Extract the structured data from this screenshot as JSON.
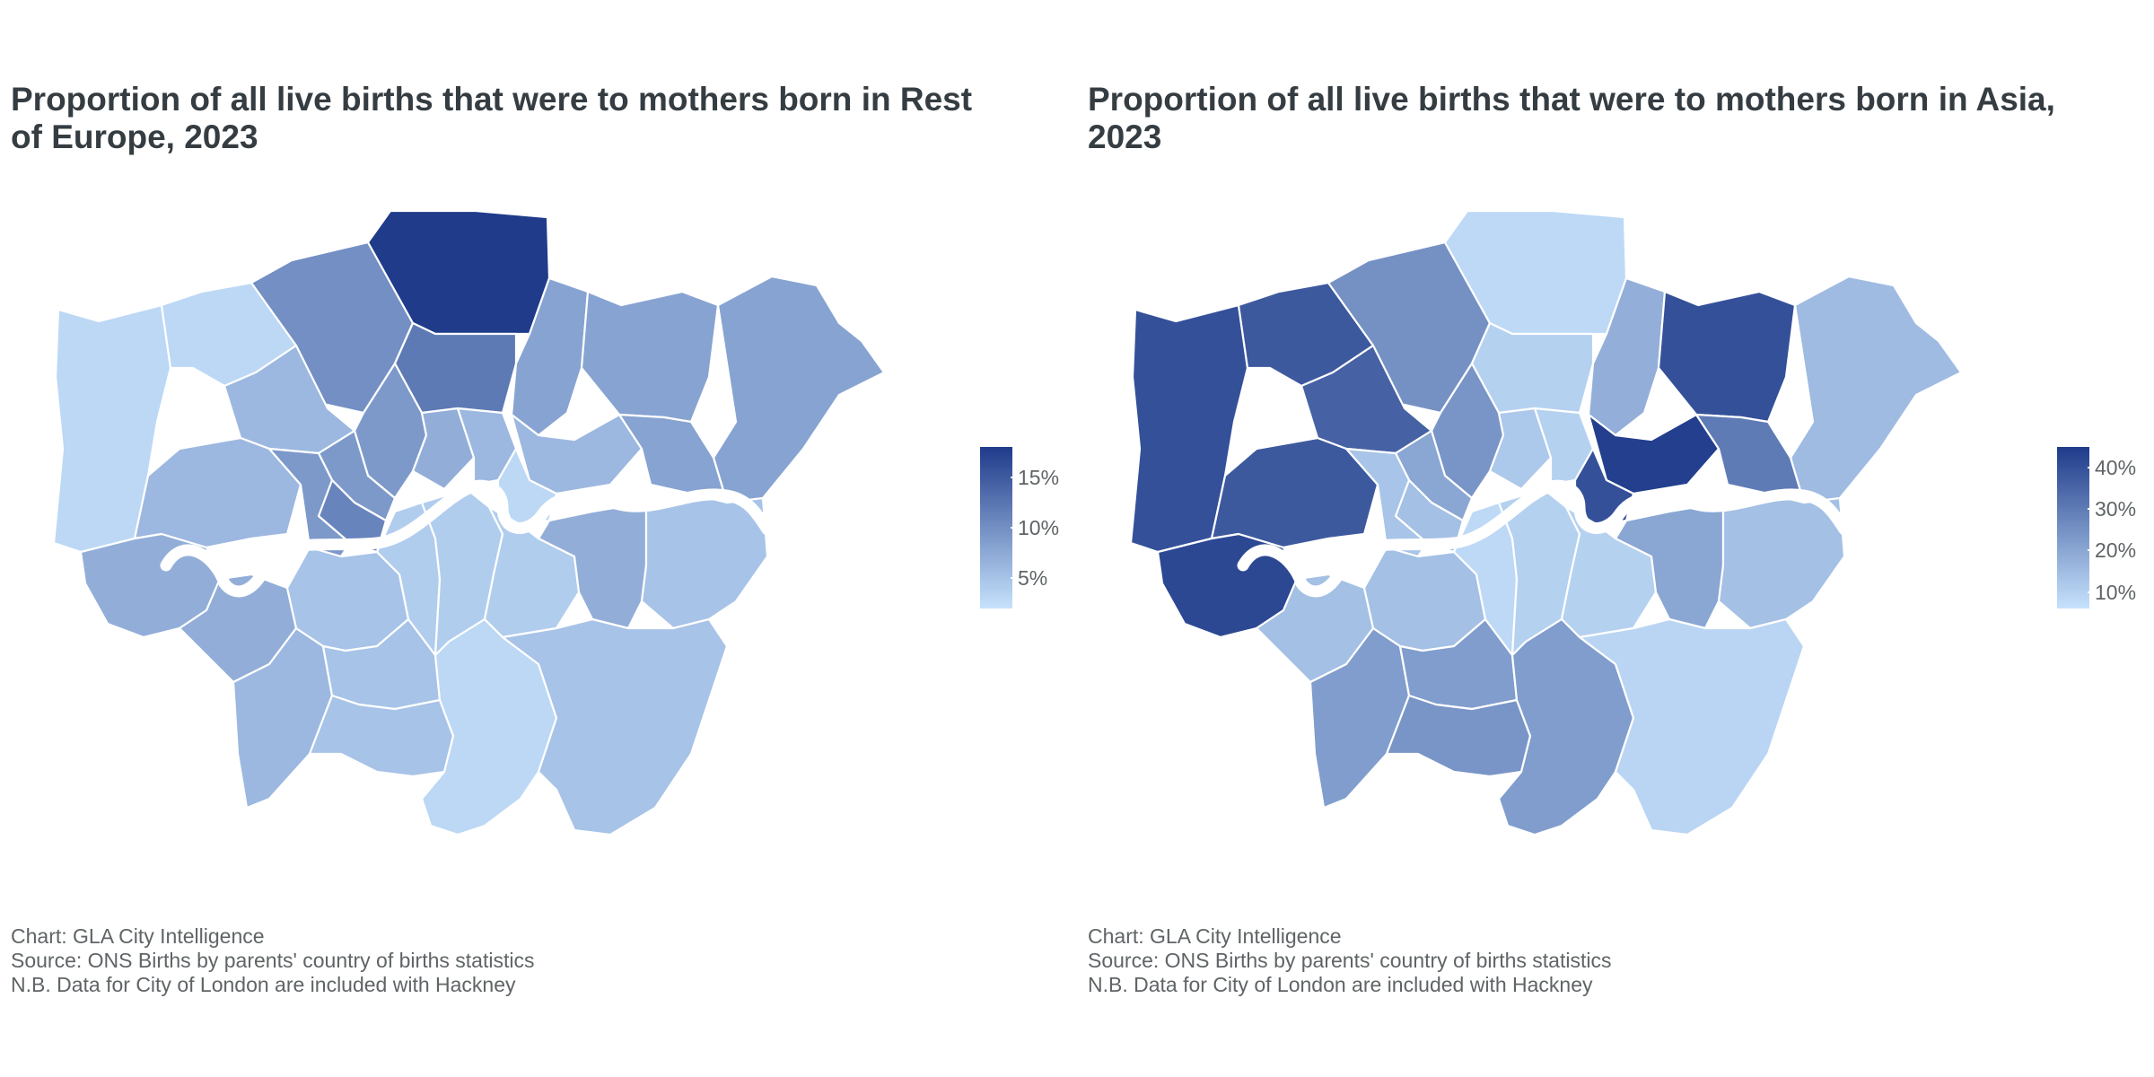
{
  "chart_data": [
    {
      "type": "choropleth",
      "title": "Proportion of all live births that were to mothers born in Rest of Europe, 2023",
      "color_low": "#c6e2fc",
      "color_high": "#1f3b8a",
      "legend": {
        "placement": "right",
        "range": [
          2,
          18
        ],
        "ticks": [
          {
            "value": 5,
            "label": "5%"
          },
          {
            "value": 10,
            "label": "10%"
          },
          {
            "value": 15,
            "label": "15%"
          }
        ]
      },
      "areas": [
        {
          "id": "hillingdon",
          "value": 3
        },
        {
          "id": "harrow",
          "value": 3
        },
        {
          "id": "barnet",
          "value": 10
        },
        {
          "id": "enfield",
          "value": 18
        },
        {
          "id": "waltham-forest",
          "value": 8
        },
        {
          "id": "redbridge",
          "value": 8
        },
        {
          "id": "havering",
          "value": 8
        },
        {
          "id": "brent",
          "value": 6
        },
        {
          "id": "ealing",
          "value": 6
        },
        {
          "id": "haringey",
          "value": 12
        },
        {
          "id": "camden",
          "value": 9
        },
        {
          "id": "islington",
          "value": 7
        },
        {
          "id": "hackney",
          "value": 6
        },
        {
          "id": "newham",
          "value": 6
        },
        {
          "id": "barking-dagenham",
          "value": 8
        },
        {
          "id": "tower-hamlets",
          "value": 3
        },
        {
          "id": "westminster",
          "value": 9
        },
        {
          "id": "kensington-chelsea",
          "value": 11
        },
        {
          "id": "hammersmith-fulham",
          "value": 9
        },
        {
          "id": "hounslow",
          "value": 7
        },
        {
          "id": "richmond",
          "value": 7
        },
        {
          "id": "kingston",
          "value": 6
        },
        {
          "id": "wandsworth",
          "value": 5
        },
        {
          "id": "merton",
          "value": 5
        },
        {
          "id": "sutton",
          "value": 5
        },
        {
          "id": "lambeth",
          "value": 4
        },
        {
          "id": "southwark",
          "value": 4
        },
        {
          "id": "lewisham",
          "value": 4
        },
        {
          "id": "croydon",
          "value": 3
        },
        {
          "id": "greenwich",
          "value": 7
        },
        {
          "id": "bexley",
          "value": 5
        },
        {
          "id": "bromley",
          "value": 5
        }
      ]
    },
    {
      "type": "choropleth",
      "title": "Proportion of all live births that were to mothers born in Asia, 2023",
      "color_low": "#c6e2fc",
      "color_high": "#1f3b8a",
      "legend": {
        "placement": "right",
        "range": [
          6,
          45
        ],
        "ticks": [
          {
            "value": 10,
            "label": "10%"
          },
          {
            "value": 20,
            "label": "20%"
          },
          {
            "value": 30,
            "label": "30%"
          },
          {
            "value": 40,
            "label": "40%"
          }
        ]
      },
      "areas": [
        {
          "id": "hillingdon",
          "value": 40
        },
        {
          "id": "harrow",
          "value": 38
        },
        {
          "id": "barnet",
          "value": 25
        },
        {
          "id": "enfield",
          "value": 8
        },
        {
          "id": "waltham-forest",
          "value": 18
        },
        {
          "id": "redbridge",
          "value": 40
        },
        {
          "id": "havering",
          "value": 15
        },
        {
          "id": "brent",
          "value": 36
        },
        {
          "id": "ealing",
          "value": 38
        },
        {
          "id": "haringey",
          "value": 10
        },
        {
          "id": "camden",
          "value": 24
        },
        {
          "id": "islington",
          "value": 12
        },
        {
          "id": "hackney",
          "value": 10
        },
        {
          "id": "newham",
          "value": 44
        },
        {
          "id": "barking-dagenham",
          "value": 30
        },
        {
          "id": "tower-hamlets",
          "value": 40
        },
        {
          "id": "westminster",
          "value": 20
        },
        {
          "id": "kensington-chelsea",
          "value": 14
        },
        {
          "id": "hammersmith-fulham",
          "value": 13
        },
        {
          "id": "hounslow",
          "value": 42
        },
        {
          "id": "richmond",
          "value": 14
        },
        {
          "id": "kingston",
          "value": 22
        },
        {
          "id": "wandsworth",
          "value": 14
        },
        {
          "id": "merton",
          "value": 22
        },
        {
          "id": "sutton",
          "value": 24
        },
        {
          "id": "lambeth",
          "value": 8
        },
        {
          "id": "southwark",
          "value": 10
        },
        {
          "id": "lewisham",
          "value": 10
        },
        {
          "id": "croydon",
          "value": 22
        },
        {
          "id": "greenwich",
          "value": 20
        },
        {
          "id": "bexley",
          "value": 14
        },
        {
          "id": "bromley",
          "value": 9
        }
      ]
    }
  ],
  "captions": {
    "line1": "Chart: GLA City Intelligence",
    "line2": "Source: ONS Births by parents' country of births statistics",
    "line3": "N.B. Data for City of London are included with Hackney"
  }
}
